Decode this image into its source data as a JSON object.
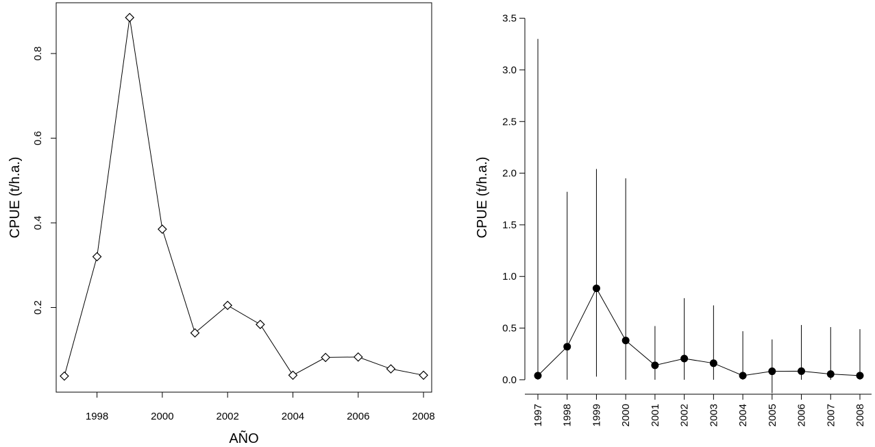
{
  "chart_data": [
    {
      "type": "line",
      "title": "",
      "xlabel": "AÑO",
      "ylabel": "CPUE (t/h.a.)",
      "x": [
        1997,
        1998,
        1999,
        2000,
        2001,
        2002,
        2003,
        2004,
        2005,
        2006,
        2007,
        2008
      ],
      "values": [
        0.038,
        0.32,
        0.885,
        0.385,
        0.14,
        0.205,
        0.16,
        0.04,
        0.082,
        0.083,
        0.055,
        0.04
      ],
      "marker": "open-diamond",
      "xlim": [
        1996.75,
        2008.25
      ],
      "ylim": [
        0.0,
        0.92
      ],
      "xticks": [
        1998,
        2000,
        2002,
        2004,
        2006,
        2008
      ],
      "xtick_labels": [
        "1998",
        "2000",
        "2002",
        "2004",
        "2006",
        "2008"
      ],
      "yticks": [
        0.2,
        0.4,
        0.6,
        0.8
      ],
      "ytick_labels": [
        "0.2",
        "0.4",
        "0.6",
        "0.8"
      ],
      "grid": false,
      "box": true
    },
    {
      "type": "line",
      "title": "",
      "xlabel": "",
      "ylabel": "CPUE (t/h.a.)",
      "categories": [
        "1997",
        "1998",
        "1999",
        "2000",
        "2001",
        "2002",
        "2003",
        "2004",
        "2005",
        "2006",
        "2007",
        "2008"
      ],
      "values": [
        0.04,
        0.32,
        0.885,
        0.38,
        0.14,
        0.205,
        0.16,
        0.04,
        0.082,
        0.083,
        0.055,
        0.04
      ],
      "error_upper": [
        3.3,
        1.82,
        2.04,
        1.95,
        0.52,
        0.79,
        0.72,
        0.47,
        0.39,
        0.53,
        0.51,
        0.49
      ],
      "error_lower": [
        0.0,
        0.0,
        0.03,
        0.0,
        0.0,
        0.0,
        0.0,
        0.0,
        -0.13,
        0.0,
        0.0,
        0.0
      ],
      "marker": "filled-circle",
      "ylim": [
        -0.14,
        3.65
      ],
      "yticks": [
        0.0,
        0.5,
        1.0,
        1.5,
        2.0,
        2.5,
        3.0,
        3.5
      ],
      "ytick_labels": [
        "0.0",
        "0.5",
        "1.0",
        "1.5",
        "2.0",
        "2.5",
        "3.0",
        "3.5"
      ],
      "grid": false,
      "box": false
    }
  ]
}
